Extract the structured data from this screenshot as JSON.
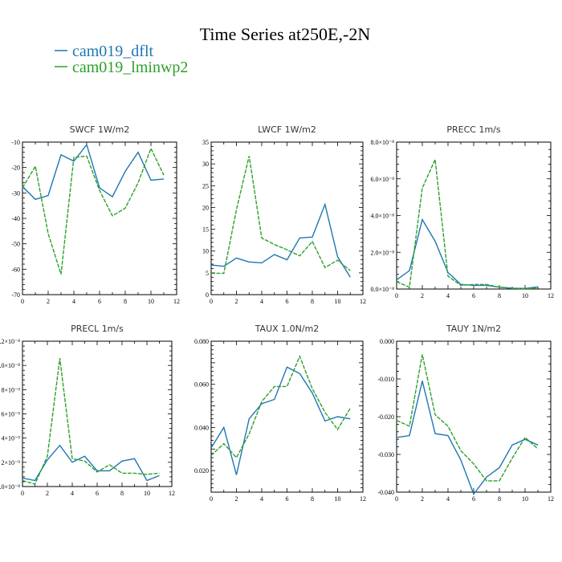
{
  "figure_title": "Time Series at250E,-2N",
  "legend": [
    {
      "label": "cam019_dflt",
      "color": "#1f77b4",
      "dash": "none"
    },
    {
      "label": "cam019_lminwp2",
      "color": "#2ca02c",
      "dash": "dashed"
    }
  ],
  "chart_data": [
    {
      "type": "line",
      "title": "SWCF  1W/m2",
      "x": [
        0,
        1,
        2,
        3,
        4,
        5,
        6,
        7,
        8,
        9,
        10,
        11
      ],
      "xlim": [
        0,
        12
      ],
      "xticks": [
        "0",
        "2",
        "4",
        "6",
        "8",
        "10",
        "12"
      ],
      "ylim": [
        -70,
        -10
      ],
      "yticks": [
        "-70",
        "-60",
        "-50",
        "-40",
        "-30",
        "-20",
        "-10"
      ],
      "series": [
        {
          "name": "cam019_dflt",
          "values": [
            -27.5,
            -32.5,
            -31,
            -15,
            -17.5,
            -11,
            -28,
            -31.5,
            -21.5,
            -14,
            -25,
            -24.5
          ]
        },
        {
          "name": "cam019_lminwp2",
          "values": [
            -28,
            -19.5,
            -46,
            -62,
            -16,
            -15.5,
            -29,
            -39,
            -36,
            -26,
            -12.5,
            -23
          ]
        }
      ]
    },
    {
      "type": "line",
      "title": "LWCF  1W/m2",
      "x": [
        0,
        1,
        2,
        3,
        4,
        5,
        6,
        7,
        8,
        9,
        10,
        11
      ],
      "xlim": [
        0,
        12
      ],
      "xticks": [
        "0",
        "2",
        "4",
        "6",
        "8",
        "10",
        "12"
      ],
      "ylim": [
        0,
        35
      ],
      "yticks": [
        "0",
        "5",
        "10",
        "15",
        "20",
        "25",
        "30",
        "35"
      ],
      "series": [
        {
          "name": "cam019_dflt",
          "values": [
            6.8,
            6.5,
            8.4,
            7.5,
            7.3,
            9.2,
            8.0,
            13.0,
            13.2,
            20.7,
            8.7,
            4.0
          ]
        },
        {
          "name": "cam019_lminwp2",
          "values": [
            4.9,
            4.9,
            19.5,
            31.8,
            13.0,
            11.5,
            10.3,
            8.9,
            12.2,
            6.2,
            7.9,
            5.5
          ]
        }
      ]
    },
    {
      "type": "line",
      "title": "PRECC   1m/s",
      "x": [
        0,
        1,
        2,
        3,
        4,
        5,
        6,
        7,
        8,
        9,
        10,
        11
      ],
      "xlim": [
        0,
        12
      ],
      "xticks": [
        "0",
        "2",
        "4",
        "6",
        "8",
        "10",
        "12"
      ],
      "ylim": [
        0,
        8e-08
      ],
      "yticks": [
        "0.0×10⁻⁸",
        "2.0×10⁻⁸",
        "4.0×10⁻⁸",
        "6.0×10⁻⁸",
        "8.0×10⁻⁸"
      ],
      "series": [
        {
          "name": "cam019_dflt",
          "values": [
            5e-09,
            1e-08,
            3.78e-08,
            2.6e-08,
            9e-09,
            2.5e-09,
            2e-09,
            2e-09,
            1e-09,
            5e-10,
            3e-10,
            1.2e-09
          ]
        },
        {
          "name": "cam019_lminwp2",
          "values": [
            4e-09,
            1e-09,
            5.5e-08,
            7.05e-08,
            7e-09,
            2e-09,
            2.5e-09,
            2.5e-09,
            1e-09,
            3e-10,
            2e-10,
            5e-10
          ]
        }
      ]
    },
    {
      "type": "line",
      "title": "PRECL   1m/s",
      "x": [
        0,
        1,
        2,
        3,
        4,
        5,
        6,
        7,
        8,
        9,
        10,
        11
      ],
      "xlim": [
        0,
        12
      ],
      "xticks": [
        "0",
        "2",
        "4",
        "6",
        "8",
        "10",
        "12"
      ],
      "ylim": [
        0,
        1.2e-08
      ],
      "yticks": [
        "0.0×10⁻⁸",
        "2×10⁻⁹",
        "4×10⁻⁹",
        "6×10⁻⁹",
        "8×10⁻⁹",
        "1.0×10⁻⁸",
        "1.2×10⁻⁸"
      ],
      "series": [
        {
          "name": "cam019_dflt",
          "values": [
            7e-10,
            5e-10,
            2.2e-09,
            3.4e-09,
            2e-09,
            2.5e-09,
            1.3e-09,
            1.3e-09,
            2.1e-09,
            2.3e-09,
            5e-10,
            9e-10
          ]
        },
        {
          "name": "cam019_lminwp2",
          "values": [
            5e-10,
            2e-10,
            2.5e-09,
            1.06e-08,
            2.3e-09,
            2.1e-09,
            1.2e-09,
            1.8e-09,
            1.1e-09,
            1.1e-09,
            1e-09,
            1.1e-09
          ]
        }
      ]
    },
    {
      "type": "line",
      "title": "TAUX  1.0N/m2",
      "x": [
        0,
        1,
        2,
        3,
        4,
        5,
        6,
        7,
        8,
        9,
        10,
        11
      ],
      "xlim": [
        0,
        12
      ],
      "xticks": [
        "0",
        "2",
        "4",
        "6",
        "8",
        "10",
        "12"
      ],
      "ylim": [
        0.01,
        0.08
      ],
      "yticks": [
        "",
        "0.020",
        "",
        "0.040",
        "",
        "0.060",
        "",
        "0.080"
      ],
      "series": [
        {
          "name": "cam019_dflt",
          "values": [
            0.0305,
            0.04,
            0.018,
            0.044,
            0.051,
            0.053,
            0.068,
            0.065,
            0.056,
            0.043,
            0.045,
            0.044
          ]
        },
        {
          "name": "cam019_lminwp2",
          "values": [
            0.027,
            0.0325,
            0.026,
            0.037,
            0.052,
            0.059,
            0.059,
            0.073,
            0.058,
            0.047,
            0.039,
            0.049
          ]
        }
      ]
    },
    {
      "type": "line",
      "title": "TAUY   1N/m2",
      "x": [
        0,
        1,
        2,
        3,
        4,
        5,
        6,
        7,
        8,
        9,
        10,
        11
      ],
      "xlim": [
        0,
        12
      ],
      "xticks": [
        "0",
        "2",
        "4",
        "6",
        "8",
        "10",
        "12"
      ],
      "ylim": [
        -0.04,
        0.0
      ],
      "yticks": [
        "-0.040",
        "-0.030",
        "-0.020",
        "-0.010",
        "0.000"
      ],
      "series": [
        {
          "name": "cam019_dflt",
          "values": [
            -0.0255,
            -0.025,
            -0.0105,
            -0.0245,
            -0.025,
            -0.0315,
            -0.0405,
            -0.036,
            -0.0335,
            -0.0275,
            -0.026,
            -0.0275
          ]
        },
        {
          "name": "cam019_lminwp2",
          "values": [
            -0.021,
            -0.0225,
            -0.0035,
            -0.0195,
            -0.0225,
            -0.029,
            -0.0325,
            -0.037,
            -0.037,
            -0.031,
            -0.0255,
            -0.0285
          ]
        }
      ]
    }
  ]
}
